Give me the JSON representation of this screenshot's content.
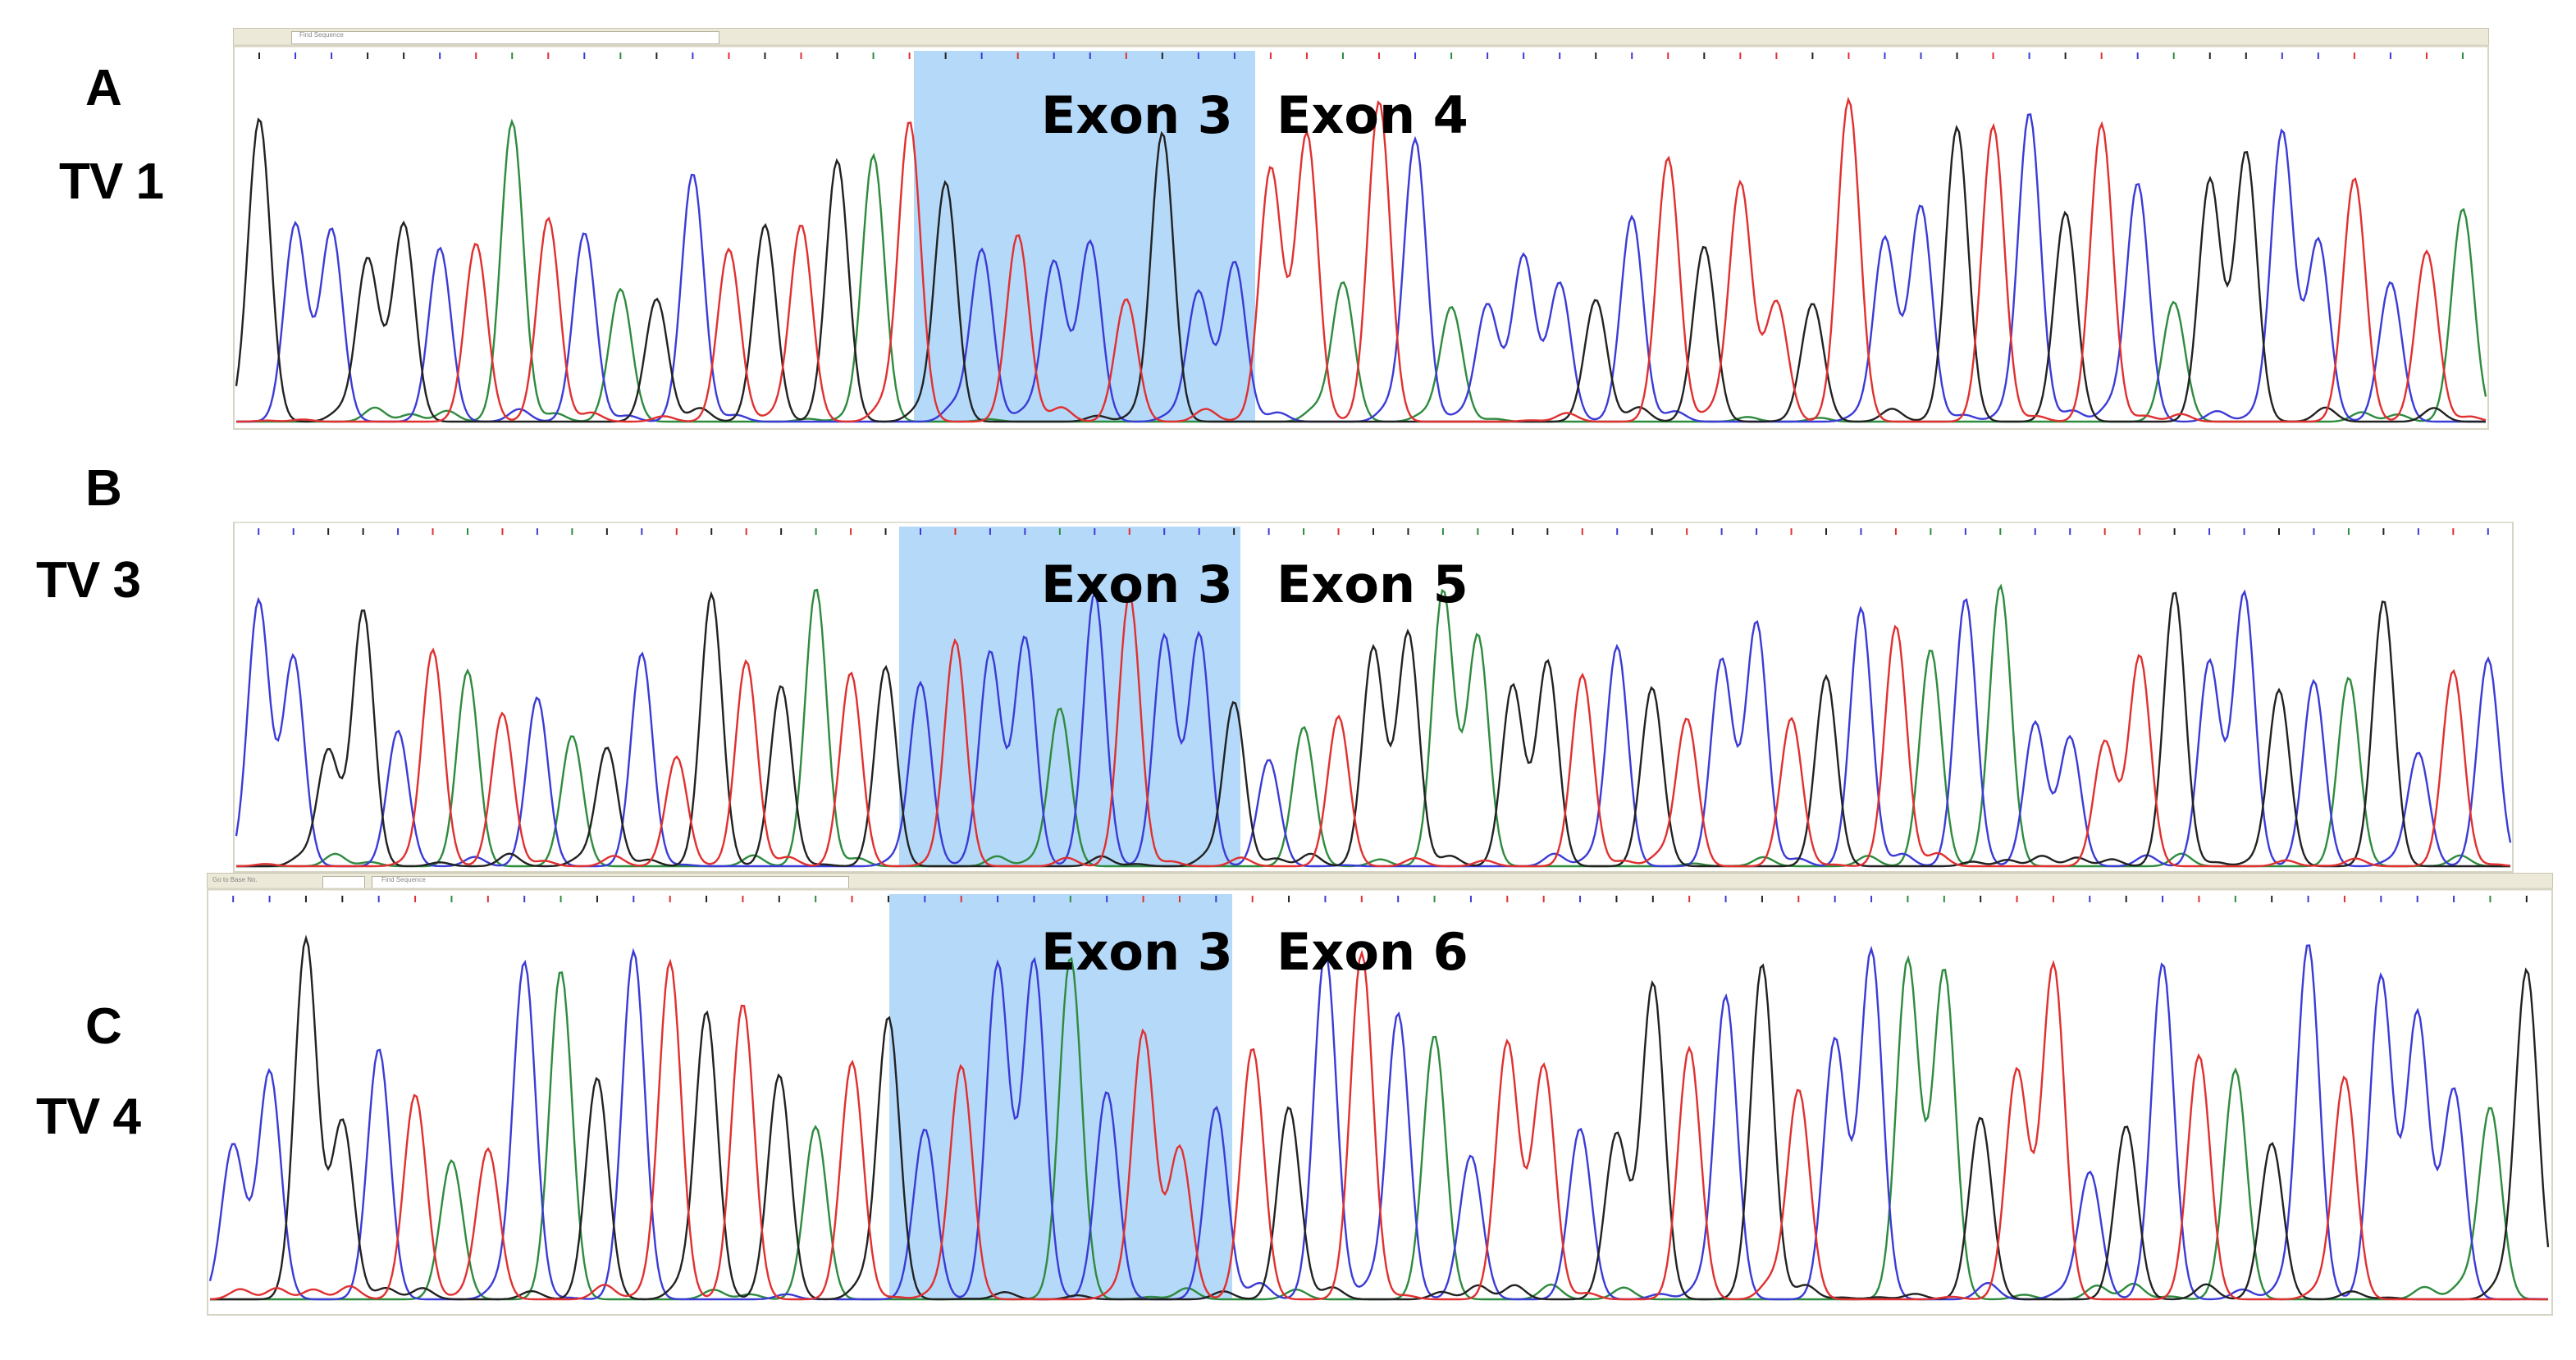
{
  "panels": [
    {
      "id": "A",
      "letter": "A",
      "tv": "TV 1",
      "exon_left": "Exon 3",
      "exon_right": "Exon 4"
    },
    {
      "id": "B",
      "letter": "B",
      "tv": "TV 3",
      "exon_left": "Exon 3",
      "exon_right": "Exon 5"
    },
    {
      "id": "C",
      "letter": "C",
      "tv": "TV 4",
      "exon_left": "Exon 3",
      "exon_right": "Exon 6"
    }
  ],
  "toolbar": {
    "find_label": "Find Sequence",
    "goto_label": "Go to Base No."
  },
  "colors": {
    "A": "#2e8b3e",
    "C": "#3b3bd6",
    "G": "#222222",
    "T": "#e03030",
    "highlight": "#a8d2f8"
  }
}
